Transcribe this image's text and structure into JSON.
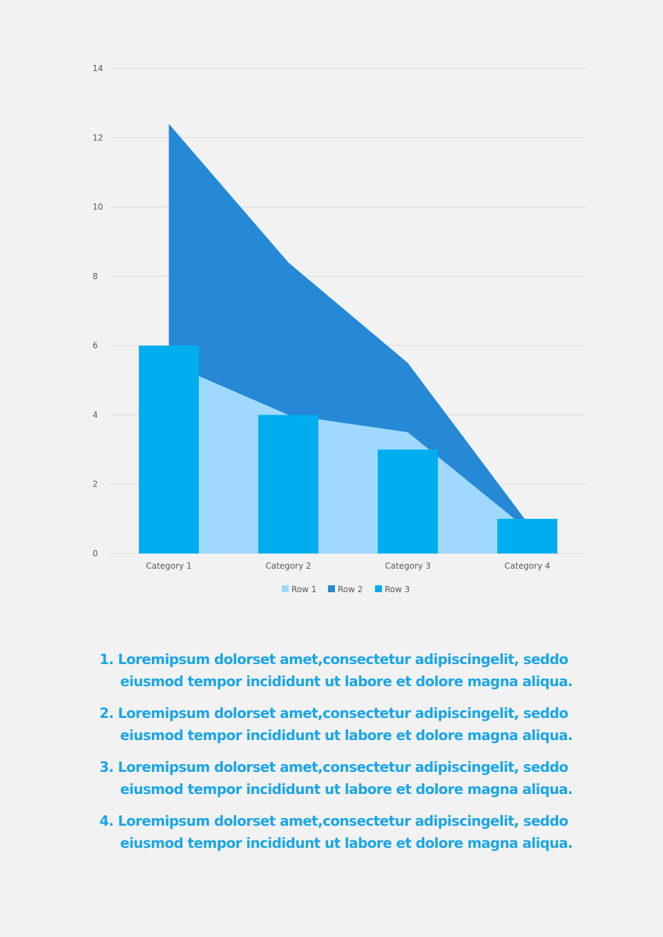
{
  "chart_data": {
    "type": "bar",
    "categories": [
      "Category 1",
      "Category 2",
      "Category 3",
      "Category 4"
    ],
    "series": [
      {
        "name": "Row 1",
        "type": "area",
        "values": [
          5.5,
          4,
          3.5,
          0.7
        ],
        "color": "#9fd9ff"
      },
      {
        "name": "Row 2",
        "type": "area",
        "values": [
          12.4,
          8.4,
          5.5,
          0.9
        ],
        "color": "#2589d6"
      },
      {
        "name": "Row 3",
        "type": "bar",
        "values": [
          6,
          4,
          3,
          1
        ],
        "color": "#00aeef"
      }
    ],
    "ylim": [
      0,
      14
    ],
    "yticks": [
      "0",
      "2",
      "4",
      "6",
      "8",
      "10",
      "12",
      "14"
    ],
    "grid": true,
    "legend": "bottom-center",
    "title": "",
    "xlabel": "",
    "ylabel": ""
  },
  "notes": [
    {
      "number": "1.",
      "text": "Loremipsum dolorset amet,consectetur adipiscingelit, seddo eiusmod tempor incididunt ut labore et dolore magna aliqua."
    },
    {
      "number": "2.",
      "text": "Loremipsum dolorset amet,consectetur adipiscingelit, seddo eiusmod tempor incididunt ut labore et dolore magna aliqua."
    },
    {
      "number": "3.",
      "text": "Loremipsum dolorset amet,consectetur adipiscingelit, seddo eiusmod tempor incididunt ut labore et dolore magna aliqua."
    },
    {
      "number": "4.",
      "text": "Loremipsum dolorset amet,consectetur adipiscingelit, seddo eiusmod tempor incididunt ut labore et dolore magna aliqua."
    }
  ]
}
